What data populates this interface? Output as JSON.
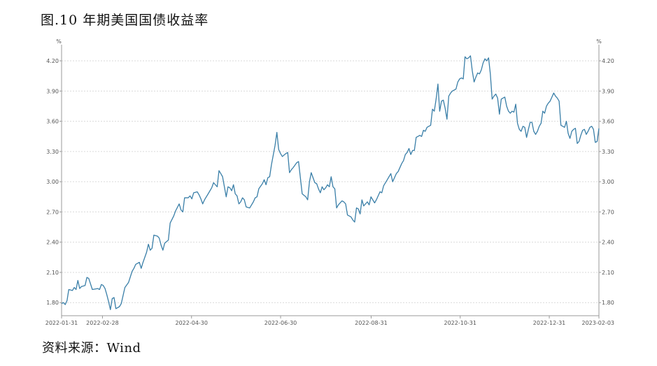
{
  "title": "图.10 年期美国国债收益率",
  "source": "资料来源：Wind",
  "chart_data": {
    "type": "line",
    "y_unit_left": "%",
    "y_unit_right": "%",
    "ylim": [
      1.67,
      4.36
    ],
    "yticks": [
      "1.80",
      "2.10",
      "2.40",
      "2.70",
      "3.00",
      "3.30",
      "3.60",
      "3.90",
      "4.20"
    ],
    "x_ticks": [
      {
        "label": "2022-01-31",
        "day": 0
      },
      {
        "label": "2022-02-28",
        "day": 28
      },
      {
        "label": "2022-04-30",
        "day": 89
      },
      {
        "label": "2022-06-30",
        "day": 150
      },
      {
        "label": "2022-08-31",
        "day": 212
      },
      {
        "label": "2022-10-31",
        "day": 273
      },
      {
        "label": "2022-12-31",
        "day": 334
      },
      {
        "label": "2023-02-03",
        "day": 368
      }
    ],
    "grid": "horizontal dotted",
    "line_color": "#3a7fa8",
    "series": [
      {
        "values": [
          [
            0,
            1.79
          ],
          [
            1,
            1.8
          ],
          [
            2,
            1.78
          ],
          [
            3,
            1.82
          ],
          [
            4,
            1.93
          ],
          [
            6,
            1.92
          ],
          [
            7,
            1.95
          ],
          [
            8,
            1.93
          ],
          [
            9,
            2.02
          ],
          [
            10,
            1.94
          ],
          [
            11,
            1.96
          ],
          [
            13,
            1.97
          ],
          [
            14,
            2.05
          ],
          [
            15,
            2.04
          ],
          [
            17,
            1.93
          ],
          [
            20,
            1.94
          ],
          [
            21,
            1.93
          ],
          [
            22,
            1.98
          ],
          [
            23,
            1.97
          ],
          [
            24,
            1.94
          ],
          [
            25,
            1.88
          ],
          [
            26,
            1.81
          ],
          [
            27,
            1.73
          ],
          [
            28,
            1.84
          ],
          [
            29,
            1.85
          ],
          [
            30,
            1.74
          ],
          [
            32,
            1.76
          ],
          [
            33,
            1.79
          ],
          [
            35,
            1.95
          ],
          [
            37,
            2.0
          ],
          [
            39,
            2.11
          ],
          [
            40,
            2.14
          ],
          [
            41,
            2.18
          ],
          [
            43,
            2.2
          ],
          [
            44,
            2.14
          ],
          [
            45,
            2.2
          ],
          [
            47,
            2.3
          ],
          [
            48,
            2.38
          ],
          [
            49,
            2.32
          ],
          [
            50,
            2.34
          ],
          [
            51,
            2.47
          ],
          [
            53,
            2.46
          ],
          [
            54,
            2.44
          ],
          [
            55,
            2.37
          ],
          [
            56,
            2.32
          ],
          [
            57,
            2.39
          ],
          [
            59,
            2.42
          ],
          [
            60,
            2.59
          ],
          [
            62,
            2.66
          ],
          [
            63,
            2.71
          ],
          [
            65,
            2.78
          ],
          [
            66,
            2.72
          ],
          [
            67,
            2.7
          ],
          [
            68,
            2.84
          ],
          [
            70,
            2.84
          ],
          [
            71,
            2.86
          ],
          [
            72,
            2.83
          ],
          [
            73,
            2.89
          ],
          [
            75,
            2.9
          ],
          [
            76,
            2.87
          ],
          [
            77,
            2.83
          ],
          [
            78,
            2.78
          ],
          [
            79,
            2.82
          ],
          [
            81,
            2.88
          ],
          [
            83,
            2.94
          ],
          [
            84,
            2.99
          ],
          [
            85,
            2.97
          ],
          [
            86,
            2.95
          ],
          [
            87,
            3.11
          ],
          [
            88,
            3.08
          ],
          [
            89,
            3.05
          ],
          [
            90,
            2.95
          ],
          [
            91,
            2.85
          ],
          [
            92,
            2.95
          ],
          [
            93,
            2.94
          ],
          [
            94,
            2.91
          ],
          [
            95,
            2.97
          ],
          [
            96,
            2.88
          ],
          [
            97,
            2.86
          ],
          [
            98,
            2.78
          ],
          [
            99,
            2.8
          ],
          [
            100,
            2.84
          ],
          [
            101,
            2.82
          ],
          [
            102,
            2.75
          ],
          [
            104,
            2.74
          ],
          [
            106,
            2.8
          ],
          [
            107,
            2.84
          ],
          [
            108,
            2.85
          ],
          [
            109,
            2.93
          ],
          [
            111,
            2.98
          ],
          [
            112,
            3.02
          ],
          [
            113,
            2.97
          ],
          [
            114,
            3.04
          ],
          [
            115,
            3.05
          ],
          [
            116,
            3.17
          ],
          [
            118,
            3.36
          ],
          [
            119,
            3.49
          ],
          [
            120,
            3.32
          ],
          [
            121,
            3.28
          ],
          [
            122,
            3.25
          ],
          [
            124,
            3.28
          ],
          [
            125,
            3.29
          ],
          [
            126,
            3.09
          ],
          [
            127,
            3.12
          ],
          [
            128,
            3.14
          ],
          [
            130,
            3.19
          ],
          [
            131,
            3.2
          ],
          [
            132,
            3.04
          ],
          [
            133,
            2.88
          ],
          [
            135,
            2.85
          ],
          [
            136,
            2.82
          ],
          [
            137,
            3.0
          ],
          [
            138,
            3.09
          ],
          [
            139,
            3.04
          ],
          [
            140,
            2.99
          ],
          [
            141,
            2.98
          ],
          [
            142,
            2.93
          ],
          [
            143,
            2.89
          ],
          [
            144,
            2.95
          ],
          [
            145,
            2.92
          ],
          [
            146,
            2.94
          ],
          [
            147,
            2.97
          ],
          [
            148,
            2.95
          ],
          [
            149,
            3.05
          ],
          [
            150,
            2.95
          ],
          [
            151,
            2.93
          ],
          [
            152,
            2.74
          ],
          [
            153,
            2.77
          ],
          [
            155,
            2.81
          ],
          [
            156,
            2.8
          ],
          [
            157,
            2.78
          ],
          [
            158,
            2.67
          ],
          [
            160,
            2.65
          ],
          [
            161,
            2.62
          ],
          [
            162,
            2.6
          ],
          [
            163,
            2.74
          ],
          [
            164,
            2.73
          ],
          [
            165,
            2.68
          ],
          [
            166,
            2.82
          ],
          [
            167,
            2.76
          ],
          [
            169,
            2.8
          ],
          [
            170,
            2.77
          ],
          [
            171,
            2.85
          ],
          [
            173,
            2.79
          ],
          [
            174,
            2.82
          ],
          [
            175,
            2.86
          ],
          [
            176,
            2.9
          ],
          [
            177,
            2.89
          ],
          [
            178,
            2.96
          ],
          [
            180,
            3.02
          ],
          [
            181,
            3.05
          ],
          [
            182,
            3.08
          ],
          [
            183,
            3.0
          ],
          [
            184,
            3.04
          ],
          [
            185,
            3.08
          ],
          [
            186,
            3.1
          ],
          [
            188,
            3.18
          ],
          [
            189,
            3.21
          ],
          [
            190,
            3.27
          ],
          [
            191,
            3.29
          ],
          [
            192,
            3.33
          ],
          [
            193,
            3.27
          ],
          [
            194,
            3.31
          ],
          [
            195,
            3.31
          ],
          [
            196,
            3.44
          ],
          [
            198,
            3.46
          ],
          [
            199,
            3.45
          ],
          [
            200,
            3.51
          ],
          [
            201,
            3.5
          ],
          [
            202,
            3.54
          ],
          [
            203,
            3.55
          ],
          [
            204,
            3.56
          ],
          [
            205,
            3.72
          ],
          [
            206,
            3.7
          ],
          [
            207,
            3.82
          ],
          [
            208,
            3.97
          ],
          [
            209,
            3.7
          ],
          [
            210,
            3.8
          ],
          [
            211,
            3.81
          ],
          [
            212,
            3.73
          ],
          [
            213,
            3.62
          ],
          [
            214,
            3.85
          ],
          [
            215,
            3.88
          ],
          [
            216,
            3.9
          ],
          [
            217,
            3.91
          ],
          [
            218,
            3.92
          ],
          [
            219,
            3.99
          ],
          [
            220,
            4.02
          ],
          [
            221,
            4.03
          ],
          [
            222,
            4.02
          ],
          [
            223,
            4.24
          ],
          [
            224,
            4.22
          ],
          [
            225,
            4.23
          ],
          [
            226,
            4.25
          ],
          [
            227,
            4.1
          ],
          [
            228,
            3.99
          ],
          [
            229,
            4.04
          ],
          [
            230,
            4.08
          ],
          [
            231,
            4.07
          ],
          [
            232,
            4.11
          ],
          [
            233,
            4.18
          ],
          [
            234,
            4.22
          ],
          [
            235,
            4.2
          ],
          [
            236,
            4.23
          ],
          [
            237,
            4.07
          ],
          [
            238,
            3.82
          ],
          [
            239,
            3.85
          ],
          [
            240,
            3.87
          ],
          [
            241,
            3.83
          ],
          [
            242,
            3.67
          ],
          [
            243,
            3.82
          ],
          [
            244,
            3.83
          ],
          [
            245,
            3.84
          ],
          [
            246,
            3.75
          ],
          [
            247,
            3.7
          ],
          [
            248,
            3.68
          ],
          [
            249,
            3.7
          ],
          [
            250,
            3.69
          ],
          [
            251,
            3.77
          ],
          [
            252,
            3.58
          ],
          [
            253,
            3.52
          ],
          [
            254,
            3.5
          ],
          [
            255,
            3.55
          ],
          [
            256,
            3.54
          ],
          [
            257,
            3.44
          ],
          [
            258,
            3.52
          ],
          [
            259,
            3.59
          ],
          [
            260,
            3.59
          ],
          [
            261,
            3.5
          ],
          [
            262,
            3.47
          ],
          [
            263,
            3.5
          ],
          [
            264,
            3.55
          ],
          [
            265,
            3.58
          ],
          [
            266,
            3.7
          ],
          [
            267,
            3.68
          ],
          [
            268,
            3.75
          ],
          [
            269,
            3.78
          ],
          [
            270,
            3.8
          ],
          [
            271,
            3.84
          ],
          [
            272,
            3.88
          ],
          [
            273,
            3.85
          ],
          [
            274,
            3.83
          ],
          [
            275,
            3.8
          ],
          [
            276,
            3.56
          ],
          [
            277,
            3.55
          ],
          [
            278,
            3.54
          ],
          [
            279,
            3.6
          ],
          [
            280,
            3.48
          ],
          [
            281,
            3.43
          ],
          [
            282,
            3.5
          ],
          [
            283,
            3.52
          ],
          [
            284,
            3.53
          ],
          [
            285,
            3.38
          ],
          [
            286,
            3.4
          ],
          [
            287,
            3.46
          ],
          [
            288,
            3.51
          ],
          [
            289,
            3.52
          ],
          [
            290,
            3.47
          ],
          [
            291,
            3.5
          ],
          [
            292,
            3.54
          ],
          [
            293,
            3.55
          ],
          [
            294,
            3.52
          ],
          [
            295,
            3.39
          ],
          [
            296,
            3.4
          ],
          [
            297,
            3.53
          ]
        ]
      }
    ]
  }
}
